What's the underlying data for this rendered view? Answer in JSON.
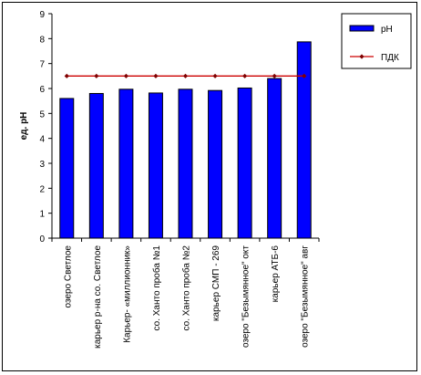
{
  "chart_data": {
    "type": "bar",
    "ylabel": "ед. pH",
    "ylim": [
      0,
      9
    ],
    "yticks": [
      0,
      1,
      2,
      3,
      4,
      5,
      6,
      7,
      8,
      9
    ],
    "grid": false,
    "legend_position": "top-right",
    "categories": [
      "озеро Светлое",
      "карьер р-на со. Светлое",
      "Карьер- «миллионник»",
      "со. Ханто проба №1",
      "со. Ханто проба №2",
      "карьер СМП - 269",
      "озеро \"Безымянное\" окт",
      "карьер АТБ-6",
      "озеро \"Безымянное\" авг"
    ],
    "series": [
      {
        "name": "pH",
        "kind": "bar",
        "color": "#0000ff",
        "values": [
          5.6,
          5.8,
          5.97,
          5.82,
          5.97,
          5.92,
          6.02,
          6.4,
          7.87
        ]
      },
      {
        "name": "ПДК",
        "kind": "line",
        "color": "#cc0000",
        "marker_color": "#800000",
        "values": [
          6.5,
          6.5,
          6.5,
          6.5,
          6.5,
          6.5,
          6.5,
          6.5,
          6.5
        ]
      }
    ]
  }
}
